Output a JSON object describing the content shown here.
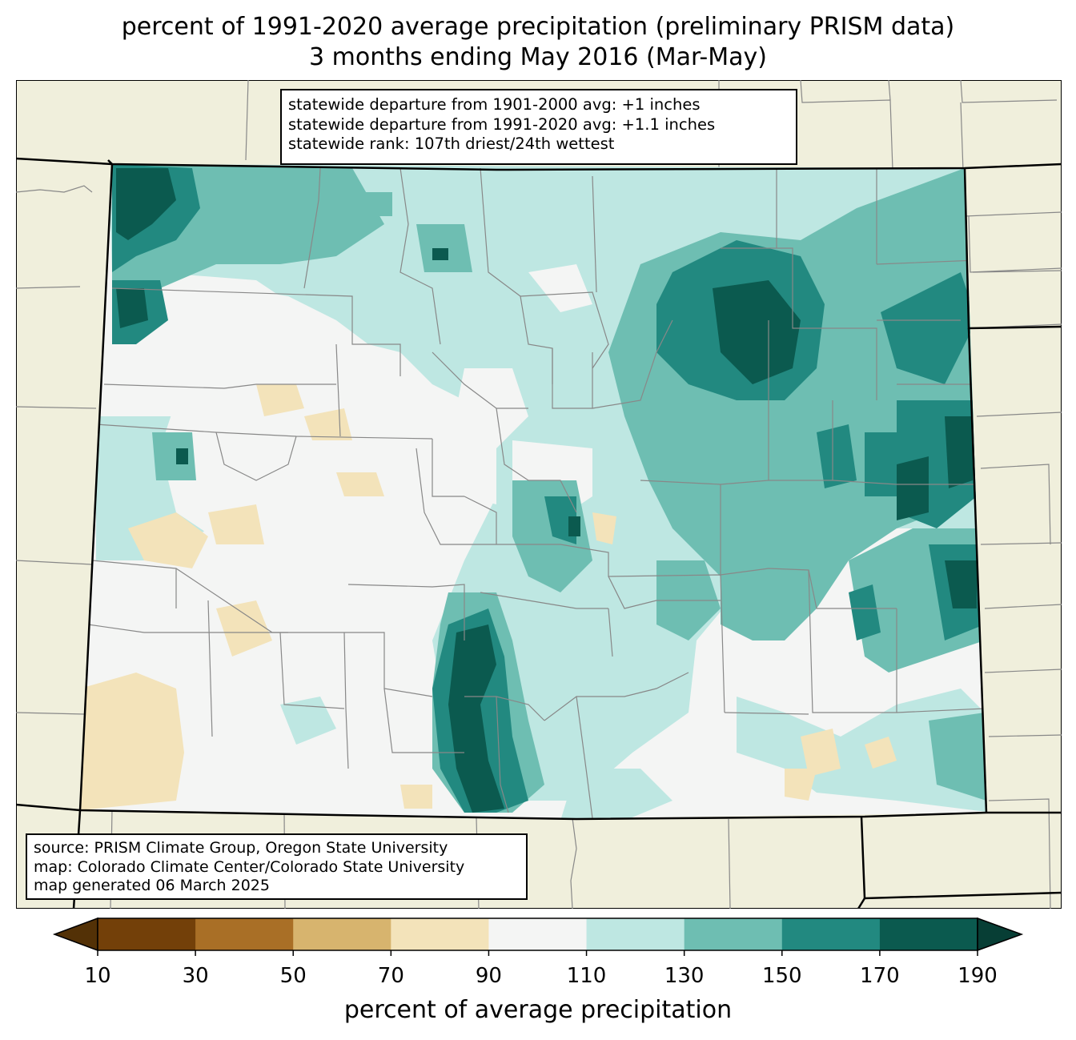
{
  "title_line1": "percent of 1991-2020 average precipitation (preliminary PRISM data)",
  "title_line2": "3 months ending May 2016 (Mar-May)",
  "stats": {
    "line1": "statewide departure from 1901-2000 avg: +1 inches",
    "line2": "statewide departure from 1991-2020 avg: +1.1 inches",
    "line3": "statewide rank: 107th driest/24th wettest"
  },
  "source": {
    "line1": "source: PRISM Climate Group, Oregon State University",
    "line2": "map: Colorado Climate Center/Colorado State University",
    "line3": "map generated 06 March 2025"
  },
  "colorbar": {
    "label": "percent of average precipitation",
    "ticks": [
      "10",
      "30",
      "50",
      "70",
      "90",
      "110",
      "130",
      "150",
      "170",
      "190"
    ],
    "colors": [
      "#734009",
      "#a96f26",
      "#d7b46e",
      "#f3e3ba",
      "#f4f5f4",
      "#bee7e2",
      "#6ebeb2",
      "#228980",
      "#0b5a4f"
    ],
    "under_color": "#533106",
    "over_color": "#073e35"
  },
  "map_colors": {
    "background": "#f0efdc",
    "state_line": "#000000",
    "county_line": "#888888"
  }
}
